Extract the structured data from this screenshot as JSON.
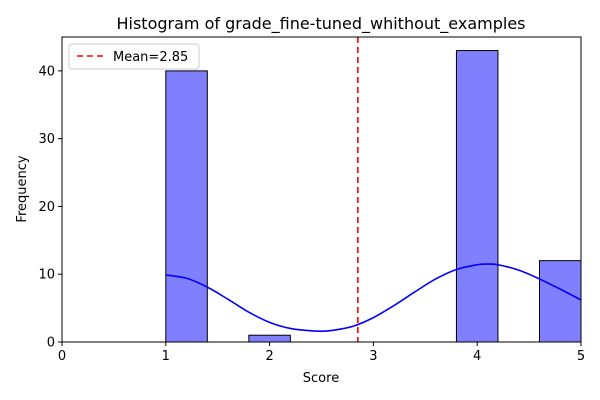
{
  "chart_data": {
    "type": "bar",
    "title": "Histogram of grade_fine-tuned_whithout_examples",
    "xlabel": "Score",
    "ylabel": "Frequency",
    "xlim": [
      0,
      5
    ],
    "ylim": [
      0,
      45
    ],
    "xticks": [
      "0",
      "1",
      "2",
      "3",
      "4",
      "5"
    ],
    "yticks": [
      "0",
      "10",
      "20",
      "30",
      "40"
    ],
    "bins": [
      {
        "x0": 1.0,
        "x1": 1.4,
        "count": 40
      },
      {
        "x0": 1.4,
        "x1": 1.8,
        "count": 0
      },
      {
        "x0": 1.8,
        "x1": 2.2,
        "count": 1
      },
      {
        "x0": 2.2,
        "x1": 2.6,
        "count": 0
      },
      {
        "x0": 2.6,
        "x1": 3.0,
        "count": 0
      },
      {
        "x0": 3.0,
        "x1": 3.4,
        "count": 0
      },
      {
        "x0": 3.4,
        "x1": 3.8,
        "count": 0
      },
      {
        "x0": 3.8,
        "x1": 4.2,
        "count": 43
      },
      {
        "x0": 4.2,
        "x1": 4.6,
        "count": 0
      },
      {
        "x0": 4.6,
        "x1": 5.0,
        "count": 12
      }
    ],
    "mean": 2.85,
    "legend": {
      "label": "Mean=2.85",
      "placement": "top-left"
    },
    "kde": {
      "x": [
        1.0,
        1.2,
        1.4,
        1.6,
        1.8,
        2.0,
        2.2,
        2.4,
        2.5,
        2.6,
        2.8,
        3.0,
        3.2,
        3.4,
        3.6,
        3.8,
        4.0,
        4.1,
        4.2,
        4.4,
        4.6,
        4.8,
        5.0
      ],
      "y": [
        9.9,
        9.4,
        8.1,
        6.3,
        4.4,
        2.9,
        2.0,
        1.65,
        1.6,
        1.7,
        2.3,
        3.6,
        5.4,
        7.4,
        9.3,
        10.7,
        11.4,
        11.5,
        11.4,
        10.6,
        9.3,
        7.8,
        6.2
      ]
    },
    "grid": false,
    "colors": {
      "bar_fill": "#8080ff",
      "bar_edge": "#000000",
      "kde_line": "#0000ff",
      "mean_line": "#ff0000"
    }
  }
}
